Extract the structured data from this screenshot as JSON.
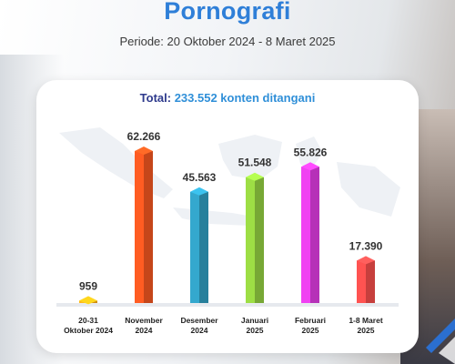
{
  "header": {
    "title": "Pornografi",
    "period": "Periode: 20 Oktober 2024 - 8 Maret 2025"
  },
  "total": {
    "prefix": "Total: ",
    "value": "233.552 konten ditangani"
  },
  "chart_data": {
    "type": "bar",
    "categories": [
      [
        "20-31",
        "Oktober 2024"
      ],
      [
        "November",
        "2024"
      ],
      [
        "Desember",
        "2024"
      ],
      [
        "Januari",
        "2025"
      ],
      [
        "Februari",
        "2025"
      ],
      [
        "1-8 Maret",
        "2025"
      ]
    ],
    "values": [
      959,
      62266,
      45563,
      51548,
      55826,
      17390
    ],
    "value_labels": [
      "959",
      "62.266",
      "45.563",
      "51.548",
      "55.826",
      "17.390"
    ],
    "colors": [
      "#f2a516",
      "#e8521e",
      "#2e96b8",
      "#8cc63e",
      "#d63ad8",
      "#ea4a48"
    ],
    "grid": false
  }
}
